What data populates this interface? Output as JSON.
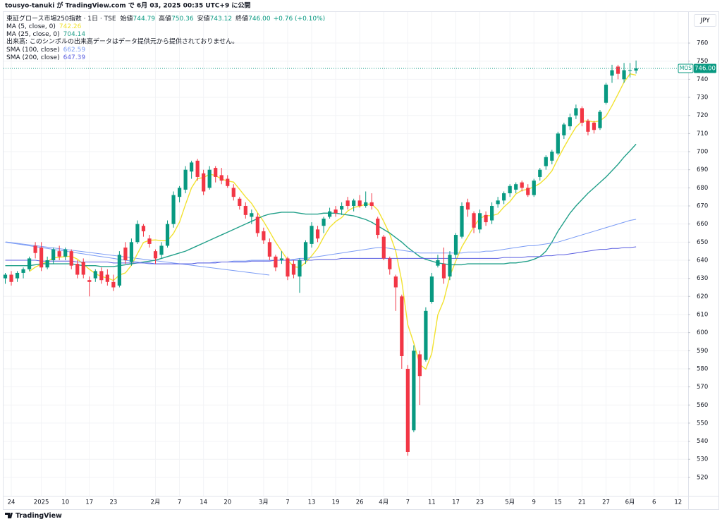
{
  "header": {
    "publisher": "tousyo-tanuki が TradingView.com で 6月 03, 2025 00:35 UTC+9 に公開"
  },
  "chart_data": {
    "type": "candlestick",
    "title": "東証グロース市場250指数 · 1日 · TSE",
    "legend": [
      {
        "label": "始値",
        "value": "744.79"
      },
      {
        "label": "高値",
        "value": "750.36"
      },
      {
        "label": "安値",
        "value": "743.12"
      },
      {
        "label": "終値",
        "value": "746.00"
      }
    ],
    "change": "+0.76 (+0.10%)",
    "volume_note": "出来高: このシンボルの出来高データはデータ提供元から提供されておりません。",
    "currency": "JPY",
    "up_color": "#089981",
    "down_color": "#f23645",
    "grid": true,
    "ylim": [
      511,
      776
    ],
    "yticks": [
      520,
      530,
      540,
      550,
      560,
      570,
      580,
      590,
      600,
      610,
      620,
      630,
      640,
      650,
      660,
      670,
      680,
      690,
      700,
      710,
      720,
      730,
      740,
      750,
      760
    ],
    "last_price": {
      "label": "MOS",
      "value": 746,
      "value_label": "746.00"
    },
    "categories": [
      null,
      "24",
      null,
      null,
      null,
      null,
      "2025",
      null,
      null,
      null,
      "10",
      null,
      null,
      null,
      "17",
      null,
      null,
      null,
      "23",
      null,
      null,
      null,
      null,
      null,
      null,
      "2月",
      null,
      null,
      null,
      "7",
      null,
      null,
      null,
      "14",
      null,
      null,
      null,
      "20",
      null,
      null,
      null,
      null,
      null,
      "3月",
      null,
      null,
      null,
      "7",
      null,
      null,
      null,
      "13",
      null,
      null,
      null,
      "19",
      null,
      null,
      null,
      "26",
      null,
      null,
      null,
      "4月",
      null,
      null,
      null,
      "7",
      null,
      null,
      null,
      "11",
      null,
      null,
      null,
      "17",
      null,
      null,
      null,
      "23",
      null,
      null,
      null,
      null,
      "5月",
      null,
      null,
      null,
      "9",
      null,
      null,
      null,
      "15",
      null,
      null,
      null,
      "21",
      null,
      null,
      null,
      "27",
      null,
      null,
      null,
      "6月",
      null,
      null,
      null,
      "6",
      null,
      null,
      null,
      "12"
    ],
    "open": [
      630,
      632,
      630,
      633,
      635,
      648,
      647,
      636,
      640,
      645,
      642,
      645,
      638,
      639,
      629,
      630,
      634,
      632,
      628,
      626,
      647,
      639,
      650,
      659,
      652,
      645,
      643,
      648,
      660,
      675,
      679,
      689,
      695,
      688,
      680,
      691,
      687,
      685,
      680,
      674,
      670,
      664,
      664,
      656,
      650,
      642,
      640,
      641,
      638,
      631,
      640,
      649,
      657,
      659,
      664,
      668,
      668,
      673,
      670,
      673,
      670,
      672,
      663,
      653,
      641,
      631,
      620,
      580,
      546,
      588,
      585,
      617,
      637,
      638,
      631,
      643,
      653,
      672,
      666,
      657,
      665,
      662,
      671,
      673,
      677,
      679,
      683,
      680,
      676,
      686,
      692,
      695,
      699,
      709,
      714,
      720,
      724,
      717,
      716,
      713,
      727,
      742,
      747,
      740,
      745,
      744.79,
      null,
      null,
      null,
      null,
      null,
      null,
      null
    ],
    "high": [
      633,
      634,
      634,
      636,
      642,
      650,
      650,
      642,
      647,
      648,
      647,
      646,
      640,
      641,
      631,
      635,
      636,
      635,
      632,
      645,
      650,
      652,
      662,
      660,
      654,
      646,
      650,
      662,
      678,
      681,
      692,
      695,
      696,
      690,
      692,
      692,
      691,
      687,
      682,
      675,
      672,
      668,
      666,
      658,
      652,
      643,
      645,
      642,
      640,
      641,
      651,
      661,
      659,
      664,
      669,
      670,
      672,
      675,
      674,
      676,
      678,
      677,
      664,
      654,
      642,
      632,
      621,
      582,
      593,
      590,
      614,
      633,
      643,
      647,
      645,
      655,
      672,
      674,
      667,
      668,
      667,
      672,
      675,
      678,
      682,
      683,
      684,
      682,
      685,
      691,
      698,
      701,
      711,
      716,
      721,
      726,
      725,
      718,
      717,
      723,
      738,
      748,
      748,
      749,
      749,
      750.36,
      null,
      null,
      null,
      null,
      null,
      null,
      null
    ],
    "low": [
      627,
      626,
      628,
      630,
      634,
      641,
      634,
      635,
      638,
      640,
      640,
      635,
      630,
      630,
      620,
      628,
      627,
      626,
      623,
      625,
      638,
      637,
      649,
      653,
      647,
      638,
      641,
      647,
      658,
      672,
      677,
      685,
      684,
      676,
      679,
      683,
      682,
      680,
      673,
      668,
      663,
      660,
      653,
      649,
      640,
      634,
      638,
      629,
      630,
      622,
      638,
      647,
      650,
      655,
      663,
      664,
      665,
      668,
      667,
      669,
      669,
      668,
      652,
      640,
      632,
      612,
      580,
      532,
      545,
      560,
      584,
      616,
      636,
      627,
      629,
      641,
      652,
      664,
      655,
      655,
      659,
      660,
      669,
      671,
      675,
      677,
      678,
      675,
      675,
      684,
      690,
      693,
      698,
      707,
      712,
      718,
      714,
      709,
      710,
      712,
      726,
      738,
      740,
      738,
      741,
      743.12,
      null,
      null,
      null,
      null,
      null,
      null,
      null
    ],
    "close": [
      632,
      628,
      633,
      635,
      641,
      644,
      636,
      640,
      646,
      642,
      646,
      637,
      632,
      632,
      628,
      634,
      629,
      628,
      625,
      643,
      640,
      650,
      660,
      656,
      649,
      641,
      648,
      660,
      676,
      680,
      690,
      694,
      686,
      678,
      690,
      686,
      684,
      681,
      675,
      670,
      665,
      666,
      655,
      651,
      642,
      636,
      641,
      631,
      632,
      640,
      650,
      659,
      652,
      663,
      667,
      666,
      670,
      670,
      673,
      670,
      672,
      670,
      654,
      641,
      635,
      625,
      587,
      534,
      590,
      576,
      612,
      631,
      640,
      630,
      643,
      654,
      670,
      668,
      658,
      666,
      661,
      670,
      673,
      677,
      681,
      682,
      680,
      676,
      684,
      690,
      697,
      700,
      710,
      715,
      719,
      724,
      716,
      711,
      712,
      722,
      737,
      745,
      743,
      745,
      745,
      746,
      null,
      null,
      null,
      null,
      null,
      null,
      null
    ],
    "series": [
      {
        "name": "MA (5, close, 0)",
        "color": "#f2e231",
        "values": [
          null,
          null,
          null,
          null,
          633.8,
          636.2,
          637.8,
          639.2,
          641.4,
          641.6,
          642,
          642.2,
          640.6,
          637.8,
          635,
          632.6,
          631,
          630.2,
          628.8,
          631.8,
          633,
          637.2,
          643.6,
          649.8,
          651,
          651.2,
          650.8,
          650.8,
          654.8,
          661,
          670.8,
          680,
          685.2,
          685.6,
          687.6,
          686.8,
          684.8,
          683.8,
          683.2,
          679.2,
          675,
          671.4,
          666.2,
          661.4,
          655.8,
          650,
          645,
          640.2,
          636.4,
          636,
          638.8,
          642.4,
          646.6,
          652.8,
          658.2,
          661.4,
          663.6,
          667.2,
          669.2,
          669.8,
          671,
          671,
          667.8,
          661.4,
          654.4,
          645,
          628.4,
          604.4,
          594.2,
          582.4,
          579.8,
          588.6,
          609.8,
          617.8,
          631.2,
          639.6,
          647.4,
          653,
          658.6,
          663.2,
          664.6,
          664.6,
          665.6,
          669.4,
          672.4,
          676.6,
          678.6,
          679.2,
          680.6,
          682.4,
          685.4,
          689.4,
          696.2,
          702.4,
          708.2,
          713.6,
          716.8,
          717,
          716.4,
          717,
          719.6,
          725.4,
          731.8,
          738.4,
          743,
          742.26,
          null,
          null,
          null,
          null,
          null,
          null,
          null
        ]
      },
      {
        "name": "MA (25, close, 0)",
        "color": "#22a08a",
        "values": [
          637,
          637,
          637,
          637,
          637,
          637.5,
          638,
          638,
          638,
          638,
          638,
          638,
          637.5,
          637,
          637,
          637,
          636.5,
          636.5,
          636.5,
          637,
          637.5,
          638,
          638.5,
          639,
          639.5,
          640,
          641,
          642,
          643,
          644,
          645,
          646.5,
          648,
          649.5,
          651,
          652.5,
          654,
          655.5,
          657,
          658.5,
          660,
          661.5,
          663,
          664.5,
          665.5,
          666,
          666.5,
          666.5,
          666.5,
          666,
          665.5,
          665.5,
          665.5,
          666,
          666,
          666,
          665.5,
          665,
          664.5,
          663.5,
          662.5,
          661,
          659,
          657,
          655,
          652.5,
          650,
          647,
          644.5,
          642,
          640.5,
          639.5,
          638.5,
          638,
          637.5,
          637.5,
          637.5,
          638,
          638,
          638,
          638,
          638,
          638,
          638,
          638.5,
          638.5,
          639,
          639.5,
          640.5,
          642,
          645,
          650,
          656,
          661,
          666,
          670,
          673.5,
          677,
          680,
          683,
          686,
          689.5,
          693,
          697,
          700.5,
          704.14,
          null,
          null,
          null,
          null,
          null,
          null,
          null
        ]
      },
      {
        "name": "SMA (100, close)",
        "color": "#7b9cf5",
        "values": [
          650,
          649.5,
          649,
          648.5,
          648,
          647.5,
          647,
          646.5,
          646,
          645.5,
          645,
          644.5,
          644,
          643.5,
          643,
          642.5,
          642,
          641.5,
          641,
          640.5,
          640,
          639.5,
          639,
          638.5,
          638,
          638,
          638,
          638,
          638,
          638,
          638,
          638,
          638.5,
          638.5,
          638.5,
          639,
          639,
          639,
          639.5,
          639.5,
          639.5,
          640,
          640,
          640,
          640,
          640,
          640,
          640,
          640.5,
          641,
          641,
          641.5,
          642,
          642.5,
          643,
          643.5,
          644,
          644.5,
          645,
          645.5,
          646,
          646.5,
          647,
          647,
          646.5,
          646,
          645.5,
          645,
          644.5,
          644,
          644,
          644,
          644,
          644,
          644,
          644,
          644,
          644.5,
          644.5,
          644.5,
          645,
          645,
          645.5,
          646,
          646.5,
          647,
          647.5,
          648,
          648,
          648.5,
          649,
          649.5,
          650,
          651,
          652,
          653,
          654,
          655,
          656,
          657,
          658,
          659,
          660,
          661,
          662,
          662.59,
          null,
          null,
          null,
          null,
          null,
          null,
          null
        ]
      },
      {
        "name": "SMA (200, close)",
        "color": "#5a5ee0",
        "values": [
          640,
          640,
          640,
          640,
          640,
          640,
          639.5,
          639.5,
          639.5,
          639.5,
          639.5,
          639.5,
          639,
          639,
          639,
          639,
          639,
          639,
          638.5,
          638.5,
          638.5,
          638.5,
          638.5,
          638.5,
          638.5,
          638,
          638,
          638,
          638,
          638,
          638,
          638,
          638.5,
          638.5,
          638.5,
          638.5,
          639,
          639,
          639,
          639,
          639,
          639.5,
          639.5,
          639.5,
          639.5,
          640,
          640,
          640,
          640,
          640,
          640,
          640,
          640.5,
          640.5,
          640.5,
          640.5,
          641,
          641,
          641,
          641,
          641,
          641,
          641,
          641,
          641,
          641,
          641,
          641,
          641,
          641,
          641,
          641,
          641,
          641,
          641,
          641,
          641,
          641,
          641,
          641,
          641,
          641,
          641,
          641.5,
          641.5,
          641.5,
          641.5,
          642,
          642,
          642,
          642.5,
          642.5,
          643,
          643,
          643.5,
          644,
          644.5,
          645,
          645.5,
          646,
          646,
          646.5,
          646.5,
          647,
          647,
          647.39,
          null,
          null,
          null,
          null,
          null,
          null,
          null
        ]
      }
    ]
  },
  "footer": {
    "brand": "TradingView"
  }
}
